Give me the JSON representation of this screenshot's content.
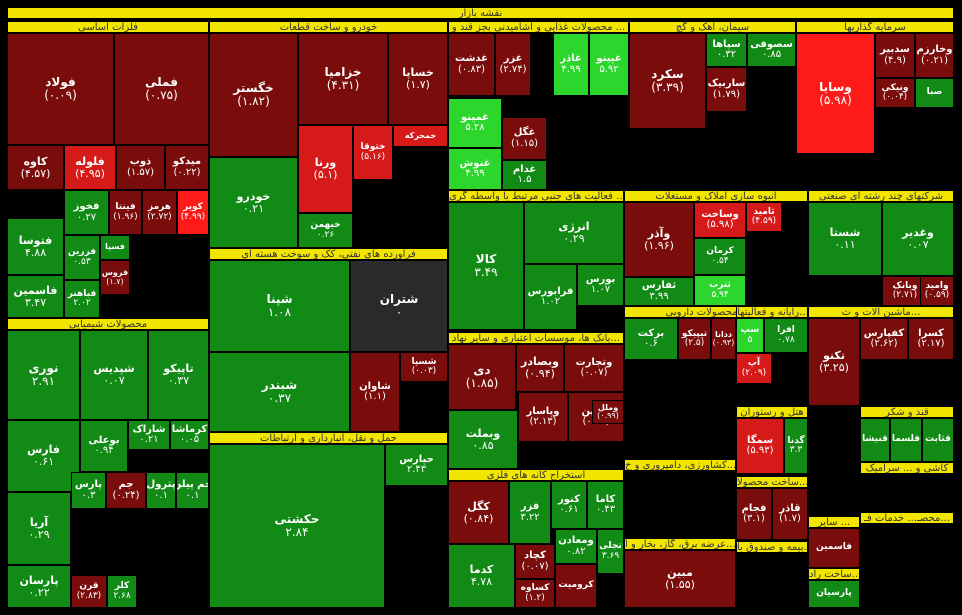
{
  "page_title": "نقشه بازار",
  "colors": {
    "dark_red": "#7a0c0c",
    "red": "#d61a1a",
    "bright_red": "#ff1a1a",
    "dark_green": "#0d7a12",
    "green": "#128a16",
    "bright_green": "#2dd62d",
    "neutral": "#2a2a2a",
    "header_yellow": "#f2e600"
  },
  "sectors": [
    "فلزات اساسی",
    "خودرو و ساخت قطعات",
    "محصولات غذایی و آشامیدنی بجز قند و ...",
    "سیمان، آهک و گچ",
    "سرمایه گذاریها",
    "فعالیت های جنبی مرتبط با واسطه گری ...",
    "انبوه سازی املاک و مستغلات",
    "شرکتهای چند رشته ای صنعتی",
    "فرآورده های نفتی، کک و سوخت هسته ای",
    "محصولات شیمیایی",
    "بانک ها، موسسات اعتباری و سایر نهاد...",
    "مواد و محصولات دارویی",
    "رایانه و فعالیتها...",
    "ماشین آلات و ت...",
    "حمل و نقل، انبارداری و ارتباطات",
    "هتل و رستوران",
    "قند و شکر",
    "استخراج کانه های فلزی",
    "کشاورزی، دامپروری و خ...",
    "ساخت محصولا...",
    "کاشی و ... سرامیک",
    "سایر ...",
    "عرضه برق، گاز، بخار و آ...",
    "بیمه و صندوق با...",
    "ساخت راد...",
    "محصـ... خدمات فـ..."
  ],
  "stocks": [
    {
      "name": "فولاد",
      "value": "(۰.۰۹)",
      "color": "dark_red"
    },
    {
      "name": "فملی",
      "value": "(۰.۷۵)",
      "color": "dark_red"
    },
    {
      "name": "کاوه",
      "value": "(۴.۵۷)",
      "color": "dark_red"
    },
    {
      "name": "فلوله",
      "value": "(۴.۹۵)",
      "color": "red"
    },
    {
      "name": "ذوب",
      "value": "(۱.۵۷)",
      "color": "dark_red"
    },
    {
      "name": "میدکو",
      "value": "(۰.۲۲)",
      "color": "dark_red"
    },
    {
      "name": "فخوز",
      "value": "۰.۲۷",
      "color": "green"
    },
    {
      "name": "فینتا",
      "value": "(۱.۹۶)",
      "color": "dark_red"
    },
    {
      "name": "هرمز",
      "value": "(۲.۷۲)",
      "color": "dark_red"
    },
    {
      "name": "کویر",
      "value": "(۴.۹۹)",
      "color": "bright_red"
    },
    {
      "name": "فتوسا",
      "value": "۴.۸۸",
      "color": "green"
    },
    {
      "name": "فزرین",
      "value": "۰.۵۳",
      "color": "green"
    },
    {
      "name": "فسپا",
      "value": "",
      "color": "green"
    },
    {
      "name": "فروس",
      "value": "(۱.۷)",
      "color": "dark_red"
    },
    {
      "name": "فاسمین",
      "value": "۳.۴۷",
      "color": "green"
    },
    {
      "name": "فباهنر",
      "value": "۲.۰۲",
      "color": "green"
    },
    {
      "name": "خگستر",
      "value": "(۱.۸۲)",
      "color": "dark_red"
    },
    {
      "name": "خزامیا",
      "value": "(۴.۳۱)",
      "color": "dark_red"
    },
    {
      "name": "خساپا",
      "value": "(۱.۷)",
      "color": "dark_red"
    },
    {
      "name": "خودرو",
      "value": "۰.۲۱",
      "color": "green"
    },
    {
      "name": "ورنا",
      "value": "(۵.۱)",
      "color": "red"
    },
    {
      "name": "ختوقا",
      "value": "(۵.۱۶)",
      "color": "red"
    },
    {
      "name": "خمحرکه",
      "value": "",
      "color": "red"
    },
    {
      "name": "خبهمن",
      "value": "۰.۲۶",
      "color": "green"
    },
    {
      "name": "غدشت",
      "value": "(۰.۸۳)",
      "color": "dark_red"
    },
    {
      "name": "غزر",
      "value": "(۲.۷۴)",
      "color": "dark_red"
    },
    {
      "name": "غاذر",
      "value": "۴.۹۹",
      "color": "bright_green"
    },
    {
      "name": "غپینو",
      "value": "۵.۹۲",
      "color": "bright_green"
    },
    {
      "name": "غمینو",
      "value": "۵.۲۸",
      "color": "bright_green"
    },
    {
      "name": "غگل",
      "value": "(۱.۱۵)",
      "color": "dark_red"
    },
    {
      "name": "غنوش",
      "value": "۴.۹۹",
      "color": "bright_green"
    },
    {
      "name": "غدام",
      "value": "۱.۵",
      "color": "green"
    },
    {
      "name": "سکرد",
      "value": "(۳.۳۹)",
      "color": "dark_red"
    },
    {
      "name": "سپاها",
      "value": "۰.۳۲",
      "color": "green"
    },
    {
      "name": "سصوفی",
      "value": "۰.۸۵",
      "color": "green"
    },
    {
      "name": "ساربیک",
      "value": "(۱.۷۹)",
      "color": "dark_red"
    },
    {
      "name": "وسایا",
      "value": "(۵.۹۸)",
      "color": "bright_red"
    },
    {
      "name": "سدبیر",
      "value": "(۴.۹)",
      "color": "dark_red"
    },
    {
      "name": "وخارزم",
      "value": "(۰.۲۱)",
      "color": "dark_red"
    },
    {
      "name": "صبا",
      "value": "",
      "color": "green"
    },
    {
      "name": "ونیکی",
      "value": "(۰.۰۴)",
      "color": "dark_red"
    },
    {
      "name": "کالا",
      "value": "۳.۴۹",
      "color": "green"
    },
    {
      "name": "انرژی",
      "value": "۰.۲۹",
      "color": "green"
    },
    {
      "name": "فرابورس",
      "value": "۱.۰۲",
      "color": "green"
    },
    {
      "name": "بورس",
      "value": "۱.۰۷",
      "color": "green"
    },
    {
      "name": "وآذر",
      "value": "(۱.۹۶)",
      "color": "dark_red"
    },
    {
      "name": "وساخت",
      "value": "(۵.۹۸)",
      "color": "red"
    },
    {
      "name": "ثامید",
      "value": "(۴.۵۹)",
      "color": "red"
    },
    {
      "name": "کرمان",
      "value": "۰.۵۴",
      "color": "green"
    },
    {
      "name": "ثفارس",
      "value": "۳.۹۹",
      "color": "green"
    },
    {
      "name": "ثترب",
      "value": "۵.۹۴",
      "color": "bright_green"
    },
    {
      "name": "شستا",
      "value": "۰.۱۱",
      "color": "green"
    },
    {
      "name": "وغدیر",
      "value": "۰.۰۷",
      "color": "green"
    },
    {
      "name": "وبانک",
      "value": "(۲.۷۱)",
      "color": "dark_red"
    },
    {
      "name": "وامید",
      "value": "(۰.۵۹)",
      "color": "dark_red"
    },
    {
      "name": "شپنا",
      "value": "۱.۰۸",
      "color": "green"
    },
    {
      "name": "شتران",
      "value": "۰",
      "color": "neutral"
    },
    {
      "name": "شبندر",
      "value": "۰.۳۷",
      "color": "green"
    },
    {
      "name": "شاوان",
      "value": "(۱.۱)",
      "color": "dark_red"
    },
    {
      "name": "شسپا",
      "value": "(۰.۰۳)",
      "color": "dark_red"
    },
    {
      "name": "نوری",
      "value": "۲.۹۱",
      "color": "green"
    },
    {
      "name": "شپدیس",
      "value": "۰.۰۷",
      "color": "green"
    },
    {
      "name": "تاپیکو",
      "value": "۰.۳۷",
      "color": "green"
    },
    {
      "name": "فارس",
      "value": "۰.۶۱",
      "color": "green"
    },
    {
      "name": "بوعلی",
      "value": "۰.۹۴",
      "color": "green"
    },
    {
      "name": "شاراک",
      "value": "۰.۲۱",
      "color": "green"
    },
    {
      "name": "کرماشا",
      "value": "۰.۰۵",
      "color": "green"
    },
    {
      "name": "پارس",
      "value": "۰.۳",
      "color": "green"
    },
    {
      "name": "جم",
      "value": "(۰.۲۴)",
      "color": "dark_red"
    },
    {
      "name": "پترول",
      "value": "۰.۱",
      "color": "green"
    },
    {
      "name": "جم پیلن",
      "value": "۰.۱",
      "color": "green"
    },
    {
      "name": "آریا",
      "value": "۰.۲۹",
      "color": "green"
    },
    {
      "name": "پارسان",
      "value": "۰.۲۲",
      "color": "green"
    },
    {
      "name": "قرن",
      "value": "(۲.۸۳)",
      "color": "dark_red"
    },
    {
      "name": "کلر",
      "value": "۲.۶۸",
      "color": "green"
    },
    {
      "name": "دی",
      "value": "(۱.۸۵)",
      "color": "dark_red"
    },
    {
      "name": "وبصادر",
      "value": "(۰.۹۴)",
      "color": "dark_red"
    },
    {
      "name": "وتجارت",
      "value": "(۰.۰۷)",
      "color": "dark_red"
    },
    {
      "name": "وبملت",
      "value": "۰.۸۵",
      "color": "green"
    },
    {
      "name": "وپاسار",
      "value": "(۲.۱۳)",
      "color": "dark_red"
    },
    {
      "name": "ونوین",
      "value": "(۰.۳۳)",
      "color": "dark_red"
    },
    {
      "name": "وملل",
      "value": "(۰.۹۹)",
      "color": "dark_red"
    },
    {
      "name": "برکت",
      "value": "۰.۶",
      "color": "green"
    },
    {
      "name": "تیپیکو",
      "value": "(۲.۵)",
      "color": "dark_red"
    },
    {
      "name": "ددانا",
      "value": "(۰.۹۳)",
      "color": "dark_red"
    },
    {
      "name": "سپ",
      "value": "۵",
      "color": "bright_green"
    },
    {
      "name": "افرا",
      "value": "۰.۷۸",
      "color": "green"
    },
    {
      "name": "آپ",
      "value": "(۲.۰۹)",
      "color": "red"
    },
    {
      "name": "تکنو",
      "value": "(۳.۲۵)",
      "color": "dark_red"
    },
    {
      "name": "کفپارس",
      "value": "(۲.۶۲)",
      "color": "dark_red"
    },
    {
      "name": "کسرا",
      "value": "(۲.۱۷)",
      "color": "dark_red"
    },
    {
      "name": "حکشتی",
      "value": "۲.۸۴",
      "color": "green"
    },
    {
      "name": "حپارس",
      "value": "۲.۴۳",
      "color": "green"
    },
    {
      "name": "سمگا",
      "value": "(۵.۹۳)",
      "color": "red"
    },
    {
      "name": "گدنا",
      "value": "۳.۳",
      "color": "green"
    },
    {
      "name": "قنیشا",
      "value": "",
      "color": "green"
    },
    {
      "name": "قلسما",
      "value": "",
      "color": "green"
    },
    {
      "name": "قثابت",
      "value": "",
      "color": "green"
    },
    {
      "name": "کگل",
      "value": "(۰.۸۴)",
      "color": "dark_red"
    },
    {
      "name": "فزر",
      "value": "۳.۲۲",
      "color": "green"
    },
    {
      "name": "کنور",
      "value": "۰.۶۱",
      "color": "green"
    },
    {
      "name": "کاما",
      "value": "۰.۴۳",
      "color": "green"
    },
    {
      "name": "کدما",
      "value": "۴.۷۸",
      "color": "green"
    },
    {
      "name": "کچاد",
      "value": "(۰.۰۷)",
      "color": "dark_red"
    },
    {
      "name": "ومعادن",
      "value": "۰.۸۲",
      "color": "green"
    },
    {
      "name": "تجلی",
      "value": "۳.۶۹",
      "color": "green"
    },
    {
      "name": "کرومیت",
      "value": "",
      "color": "dark_red"
    },
    {
      "name": "کساوه",
      "value": "(۱.۲)",
      "color": "dark_red"
    },
    {
      "name": "مبین",
      "value": "(۱.۵۵)",
      "color": "dark_red"
    },
    {
      "name": "فجام",
      "value": "(۳.۱)",
      "color": "dark_red"
    },
    {
      "name": "قاذر",
      "value": "(۱.۷)",
      "color": "dark_red"
    },
    {
      "name": "فاسمین",
      "value": "",
      "color": "dark_red"
    },
    {
      "name": "پارسیان",
      "value": "",
      "color": "green"
    },
    {
      "name": "ثامید",
      "value": "",
      "color": "dark_red"
    }
  ]
}
